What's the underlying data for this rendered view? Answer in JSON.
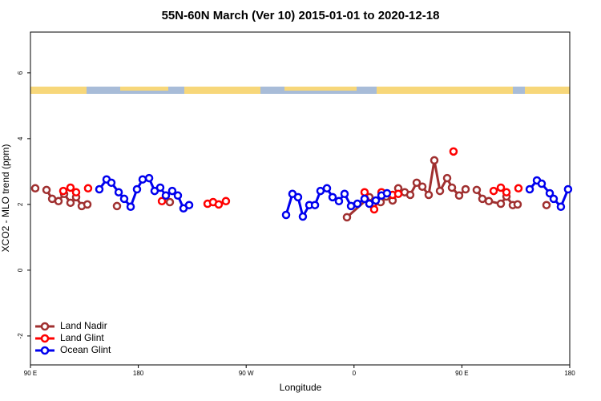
{
  "chart_data": {
    "type": "line",
    "title": "55N-60N March (Ver 10)   2015-01-01 to 2020-12-18",
    "xlabel": "Longitude",
    "ylabel": "XCO2 - MLO trend (ppm)",
    "xlim": [
      90,
      540
    ],
    "ylim": [
      -2.88,
      7.24
    ],
    "xticks": [
      {
        "value": 90,
        "label": "90 E"
      },
      180,
      {
        "value": 270,
        "label": "90 W"
      },
      {
        "value": 360,
        "label": "0"
      },
      {
        "value": 450,
        "label": "90 E"
      },
      {
        "value": 540,
        "label": "180"
      }
    ],
    "yticks": [
      -2,
      0,
      2,
      4,
      6
    ],
    "legend": "bottomleft",
    "series": [
      {
        "name": "Land Nadir",
        "color": "#a03030",
        "x": [
          94,
          null,
          103.4,
          108.1,
          113.4,
          118.1,
          123.4,
          128.1,
          132.8,
          137.5,
          null,
          162.2,
          null,
          206.3,
          null,
          354.1,
          372.8,
          382.2,
          386.9,
          392.2,
          396.9,
          402.3,
          406.9,
          412.3,
          417.0,
          422.3,
          427.0,
          431.7,
          437.7,
          441.7,
          447.7,
          453.1,
          null,
          462.4,
          467.1,
          472.5,
          482.5,
          487.2,
          492.5,
          496.5,
          null,
          520.6
        ],
        "values": [
          2.49,
          null,
          2.44,
          2.17,
          2.1,
          2.32,
          2.05,
          2.22,
          1.95,
          2.0,
          null,
          1.95,
          null,
          2.07,
          null,
          1.61,
          2.22,
          2.07,
          2.24,
          2.12,
          2.49,
          2.37,
          2.29,
          2.66,
          2.54,
          2.29,
          3.34,
          2.41,
          2.8,
          2.51,
          2.27,
          2.46,
          null,
          2.44,
          2.17,
          2.1,
          2.02,
          2.24,
          1.98,
          2.0,
          null,
          1.98
        ]
      },
      {
        "name": "Land Glint",
        "color": "#ff0000",
        "x": [
          117.4,
          123.4,
          128.1,
          null,
          138.1,
          null,
          199.7,
          null,
          237.8,
          242.4,
          247.1,
          253.1,
          null,
          368.8,
          376.8,
          382.9,
          392.2,
          396.9,
          null,
          443.0,
          null,
          476.5,
          482.5,
          487.2,
          null,
          497.2
        ],
        "values": [
          2.41,
          2.51,
          2.37,
          null,
          2.49,
          null,
          2.1,
          null,
          2.02,
          2.07,
          2.0,
          2.1,
          null,
          2.37,
          1.85,
          2.37,
          2.29,
          2.32,
          null,
          3.61,
          null,
          2.41,
          2.51,
          2.37,
          null,
          2.49
        ]
      },
      {
        "name": "Ocean Glint",
        "color": "#0000ee",
        "x": [
          147.5,
          153.5,
          157.5,
          163.6,
          168.2,
          173.6,
          178.9,
          183.6,
          189.0,
          193.6,
          198.3,
          203.0,
          208.3,
          213.0,
          217.7,
          222.4,
          null,
          303.3,
          308.6,
          313.3,
          317.3,
          322.7,
          327.4,
          332.0,
          337.4,
          342.1,
          347.4,
          352.1,
          357.5,
          362.8,
          368.8,
          372.8,
          378.2,
          382.9,
          387.5,
          null,
          506.6,
          512.6,
          516.6,
          523.3,
          526.6,
          532.6,
          538.6
        ],
        "values": [
          2.46,
          2.76,
          2.66,
          2.37,
          2.17,
          1.93,
          2.46,
          2.76,
          2.8,
          2.41,
          2.51,
          2.27,
          2.41,
          2.27,
          1.88,
          1.98,
          null,
          1.68,
          2.32,
          2.22,
          1.63,
          1.98,
          1.98,
          2.41,
          2.49,
          2.22,
          2.1,
          2.32,
          1.95,
          2.02,
          2.17,
          2.02,
          2.12,
          2.27,
          2.34,
          null,
          2.46,
          2.73,
          2.63,
          2.34,
          2.17,
          1.93,
          2.46
        ]
      }
    ]
  }
}
